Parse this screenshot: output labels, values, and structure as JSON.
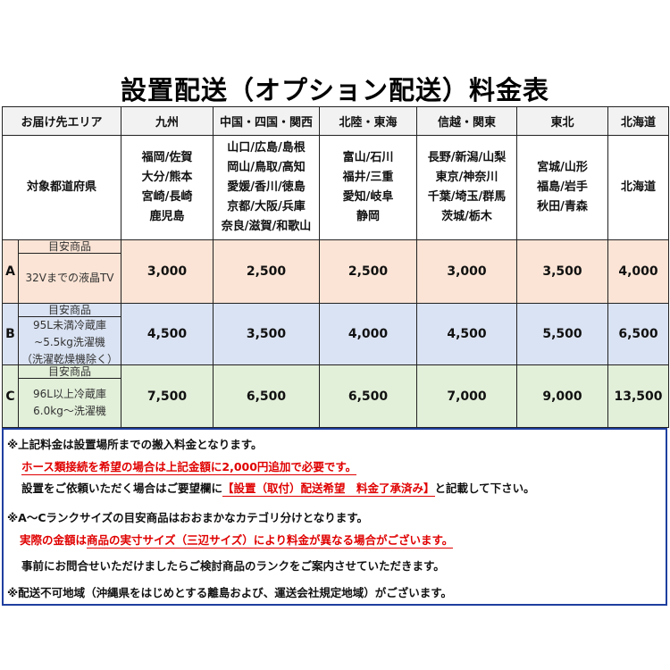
{
  "title": "設置配送（オプション配送）料金表",
  "table": {
    "header_label": "お届け先エリア",
    "areas": [
      "九州",
      "中国・四国・関西",
      "北陸・東海",
      "信越・関東",
      "東北",
      "北海道"
    ],
    "pref_label": "対象都道府県",
    "prefectures": [
      [
        "福岡/佐賀",
        "大分/熊本",
        "宮崎/長崎",
        "鹿児島"
      ],
      [
        "山口/広島/島根",
        "岡山/鳥取/高知",
        "愛媛/香川/徳島",
        "京都/大阪/兵庫",
        "奈良/滋賀/和歌山"
      ],
      [
        "富山/石川",
        "福井/三重",
        "愛知/岐阜",
        "静岡"
      ],
      [
        "長野/新潟/山梨",
        "東京/神奈川",
        "千葉/埼玉/群馬",
        "茨城/栃木"
      ],
      [
        "宮城/山形",
        "福島/岩手",
        "秋田/青森"
      ],
      [
        "北海道"
      ]
    ],
    "ranks": [
      {
        "rank": "A",
        "label": "目安商品",
        "desc": [
          "32Vまでの液晶TV"
        ],
        "prices": [
          "3,000",
          "2,500",
          "2,500",
          "3,000",
          "3,500",
          "4,000"
        ],
        "color": "#fbe4d5"
      },
      {
        "rank": "B",
        "label": "目安商品",
        "desc": [
          "95L未満冷蔵庫",
          "~5.5kg洗濯機",
          "（洗濯乾燥機除く）"
        ],
        "prices": [
          "4,500",
          "3,500",
          "4,000",
          "4,500",
          "5,500",
          "6,500"
        ],
        "color": "#dae3f3"
      },
      {
        "rank": "C",
        "label": "目安商品",
        "desc": [
          "96L以上冷蔵庫",
          "6.0kg～洗濯機"
        ],
        "prices": [
          "7,500",
          "6,500",
          "6,500",
          "7,000",
          "9,000",
          "13,500"
        ],
        "color": "#e2efd9"
      }
    ]
  },
  "notes": {
    "n1": "※上記料金は設置場所までの搬入料金となります。",
    "n2": "ホース類接続を希望の場合は上記金額に2,000円追加で必要です。",
    "n3a": "設置をご依頼いただく場合はご要望欄に",
    "n3b": "【設置（取付）配送希望　料金了承済み】",
    "n3c": "と記載して下さい。",
    "n4": "※A～Cランクサイズの目安商品はおおまかなカテゴリ分けとなります。",
    "n5a": "実際の金額は",
    "n5b": "商品の実寸サイズ（三辺サイズ）により料金が異なる場合がございます。",
    "n6": "事前にお問合せいただけましたらご検討商品のランクをご案内させていただきます。",
    "n7": "※配送不可地域（沖縄県をはじめとする離島および、運送会社規定地域）がございます。"
  },
  "colors": {
    "red": "#e00000",
    "border_blue": "#1f3f9f",
    "header_bg": "#f2f2f2"
  }
}
